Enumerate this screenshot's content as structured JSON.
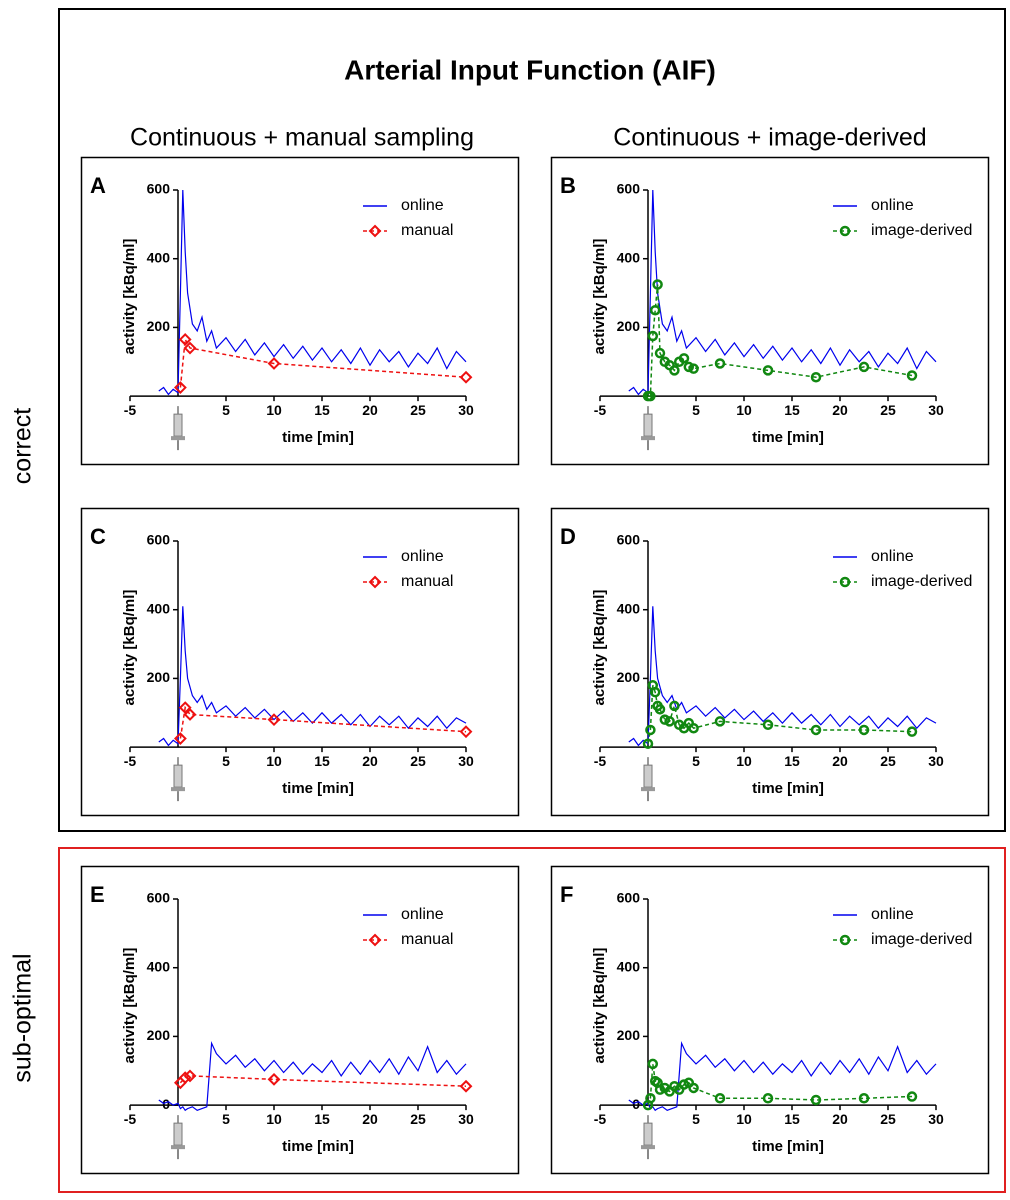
{
  "figure": {
    "title": "Arterial Input Function (AIF)",
    "columns": [
      "Continuous + manual sampling",
      "Continuous + image-derived"
    ],
    "rows": [
      "correct",
      "sub-optimal"
    ]
  },
  "chart_data": [
    {
      "type": "line",
      "label": "A",
      "xlabel": "time [min]",
      "ylabel": "activity [kBq/ml]",
      "xlim": [
        -5,
        30
      ],
      "ylim": [
        -20,
        600
      ],
      "xticks": [
        -5,
        5,
        10,
        15,
        20,
        25,
        30
      ],
      "yticks": [
        200,
        400,
        600
      ],
      "series": [
        {
          "name": "online",
          "color": "#0000ee",
          "marker": null,
          "dashed": false,
          "x": [
            -2,
            -1.5,
            -1,
            -0.5,
            0,
            0.25,
            0.5,
            0.75,
            1,
            1.5,
            2,
            2.5,
            3,
            3.5,
            4,
            5,
            6,
            7,
            8,
            9,
            10,
            11,
            12,
            13,
            14,
            15,
            16,
            17,
            18,
            19,
            20,
            21,
            22,
            23,
            24,
            25,
            26,
            27,
            28,
            29,
            30
          ],
          "values": [
            15,
            25,
            5,
            20,
            10,
            300,
            600,
            420,
            300,
            210,
            190,
            230,
            160,
            190,
            140,
            170,
            130,
            165,
            120,
            155,
            115,
            150,
            110,
            145,
            105,
            140,
            100,
            135,
            95,
            140,
            90,
            135,
            100,
            130,
            85,
            125,
            95,
            140,
            80,
            130,
            100
          ]
        },
        {
          "name": "manual",
          "color": "#ee1111",
          "marker": "diamond",
          "dashed": true,
          "x": [
            0.25,
            0.75,
            1.25,
            10,
            30
          ],
          "values": [
            25,
            165,
            140,
            95,
            55
          ]
        }
      ]
    },
    {
      "type": "line",
      "label": "B",
      "xlabel": "time [min]",
      "ylabel": "activity [kBq/ml]",
      "xlim": [
        -5,
        30
      ],
      "ylim": [
        -20,
        600
      ],
      "xticks": [
        -5,
        5,
        10,
        15,
        20,
        25,
        30
      ],
      "yticks": [
        200,
        400,
        600
      ],
      "series": [
        {
          "name": "online",
          "color": "#0000ee",
          "marker": null,
          "dashed": false,
          "x": [
            -2,
            -1.5,
            -1,
            -0.5,
            0,
            0.25,
            0.5,
            0.75,
            1,
            1.5,
            2,
            2.5,
            3,
            3.5,
            4,
            5,
            6,
            7,
            8,
            9,
            10,
            11,
            12,
            13,
            14,
            15,
            16,
            17,
            18,
            19,
            20,
            21,
            22,
            23,
            24,
            25,
            26,
            27,
            28,
            29,
            30
          ],
          "values": [
            15,
            25,
            5,
            20,
            10,
            300,
            600,
            420,
            300,
            210,
            190,
            230,
            160,
            190,
            140,
            170,
            130,
            165,
            120,
            155,
            115,
            150,
            110,
            145,
            105,
            140,
            100,
            135,
            95,
            140,
            90,
            135,
            100,
            130,
            85,
            125,
            95,
            140,
            80,
            130,
            100
          ]
        },
        {
          "name": "image-derived",
          "color": "#118811",
          "marker": "circle",
          "dashed": true,
          "x": [
            0,
            0.25,
            0.5,
            0.75,
            1,
            1.25,
            1.75,
            2.25,
            2.75,
            3.25,
            3.75,
            4.25,
            4.75,
            7.5,
            12.5,
            17.5,
            22.5,
            27.5
          ],
          "values": [
            0,
            0,
            175,
            250,
            325,
            125,
            100,
            90,
            75,
            100,
            110,
            85,
            80,
            95,
            75,
            55,
            85,
            60
          ]
        }
      ]
    },
    {
      "type": "line",
      "label": "C",
      "xlabel": "time [min]",
      "ylabel": "activity [kBq/ml]",
      "xlim": [
        -5,
        30
      ],
      "ylim": [
        -20,
        600
      ],
      "xticks": [
        -5,
        5,
        10,
        15,
        20,
        25,
        30
      ],
      "yticks": [
        200,
        400,
        600
      ],
      "series": [
        {
          "name": "online",
          "color": "#0000ee",
          "marker": null,
          "dashed": false,
          "x": [
            -2,
            -1.5,
            -1,
            -0.5,
            0,
            0.25,
            0.5,
            0.75,
            1,
            1.5,
            2,
            2.5,
            3,
            3.5,
            4,
            5,
            6,
            7,
            8,
            9,
            10,
            11,
            12,
            13,
            14,
            15,
            16,
            17,
            18,
            19,
            20,
            21,
            22,
            23,
            24,
            25,
            26,
            27,
            28,
            29,
            30
          ],
          "values": [
            15,
            25,
            5,
            20,
            10,
            200,
            410,
            280,
            200,
            150,
            130,
            150,
            110,
            130,
            100,
            120,
            90,
            115,
            85,
            110,
            80,
            105,
            75,
            100,
            70,
            100,
            70,
            95,
            65,
            95,
            60,
            90,
            65,
            90,
            55,
            85,
            60,
            90,
            55,
            85,
            70
          ]
        },
        {
          "name": "manual",
          "color": "#ee1111",
          "marker": "diamond",
          "dashed": true,
          "x": [
            0.25,
            0.75,
            1.25,
            10,
            30
          ],
          "values": [
            25,
            115,
            95,
            80,
            45
          ]
        }
      ]
    },
    {
      "type": "line",
      "label": "D",
      "xlabel": "time [min]",
      "ylabel": "activity [kBq/ml]",
      "xlim": [
        -5,
        30
      ],
      "ylim": [
        -20,
        600
      ],
      "xticks": [
        -5,
        5,
        10,
        15,
        20,
        25,
        30
      ],
      "yticks": [
        200,
        400,
        600
      ],
      "series": [
        {
          "name": "online",
          "color": "#0000ee",
          "marker": null,
          "dashed": false,
          "x": [
            -2,
            -1.5,
            -1,
            -0.5,
            0,
            0.25,
            0.5,
            0.75,
            1,
            1.5,
            2,
            2.5,
            3,
            3.5,
            4,
            5,
            6,
            7,
            8,
            9,
            10,
            11,
            12,
            13,
            14,
            15,
            16,
            17,
            18,
            19,
            20,
            21,
            22,
            23,
            24,
            25,
            26,
            27,
            28,
            29,
            30
          ],
          "values": [
            15,
            25,
            5,
            20,
            10,
            200,
            410,
            280,
            200,
            150,
            130,
            150,
            110,
            130,
            100,
            120,
            90,
            115,
            85,
            110,
            80,
            105,
            75,
            100,
            70,
            100,
            70,
            95,
            65,
            95,
            60,
            90,
            65,
            90,
            55,
            85,
            60,
            90,
            55,
            85,
            70
          ]
        },
        {
          "name": "image-derived",
          "color": "#118811",
          "marker": "circle",
          "dashed": true,
          "x": [
            0,
            0.25,
            0.5,
            0.75,
            1,
            1.25,
            1.75,
            2.25,
            2.75,
            3.25,
            3.75,
            4.25,
            4.75,
            7.5,
            12.5,
            17.5,
            22.5,
            27.5
          ],
          "values": [
            10,
            50,
            180,
            160,
            120,
            110,
            80,
            75,
            120,
            65,
            55,
            70,
            55,
            75,
            65,
            50,
            50,
            45
          ]
        }
      ]
    },
    {
      "type": "line",
      "label": "E",
      "xlabel": "time [min]",
      "ylabel": "activity [kBq/ml]",
      "xlim": [
        -5,
        30
      ],
      "ylim": [
        -20,
        600
      ],
      "xticks": [
        -5,
        5,
        10,
        15,
        20,
        25,
        30
      ],
      "yticks": [
        0,
        200,
        400,
        600
      ],
      "series": [
        {
          "name": "online",
          "color": "#0000ee",
          "marker": null,
          "dashed": false,
          "x": [
            -2,
            -1.5,
            -1,
            -0.5,
            0,
            0.25,
            0.5,
            0.75,
            1,
            1.5,
            2,
            2.5,
            3,
            3.5,
            4,
            5,
            6,
            7,
            8,
            9,
            10,
            11,
            12,
            13,
            14,
            15,
            16,
            17,
            18,
            19,
            20,
            21,
            22,
            23,
            24,
            25,
            26,
            27,
            28,
            29,
            30
          ],
          "values": [
            15,
            5,
            10,
            0,
            5,
            -10,
            -5,
            -15,
            -10,
            -5,
            -15,
            -10,
            -5,
            180,
            150,
            120,
            145,
            110,
            135,
            100,
            130,
            95,
            125,
            90,
            120,
            95,
            130,
            85,
            125,
            90,
            130,
            95,
            135,
            90,
            140,
            100,
            170,
            95,
            130,
            90,
            120
          ]
        },
        {
          "name": "manual",
          "color": "#ee1111",
          "marker": "diamond",
          "dashed": true,
          "x": [
            0.25,
            0.75,
            1.25,
            10,
            30
          ],
          "values": [
            65,
            80,
            85,
            75,
            55
          ]
        }
      ]
    },
    {
      "type": "line",
      "label": "F",
      "xlabel": "time [min]",
      "ylabel": "activity [kBq/ml]",
      "xlim": [
        -5,
        30
      ],
      "ylim": [
        -20,
        600
      ],
      "xticks": [
        -5,
        5,
        10,
        15,
        20,
        25,
        30
      ],
      "yticks": [
        0,
        200,
        400,
        600
      ],
      "series": [
        {
          "name": "online",
          "color": "#0000ee",
          "marker": null,
          "dashed": false,
          "x": [
            -2,
            -1.5,
            -1,
            -0.5,
            0,
            0.25,
            0.5,
            0.75,
            1,
            1.5,
            2,
            2.5,
            3,
            3.5,
            4,
            5,
            6,
            7,
            8,
            9,
            10,
            11,
            12,
            13,
            14,
            15,
            16,
            17,
            18,
            19,
            20,
            21,
            22,
            23,
            24,
            25,
            26,
            27,
            28,
            29,
            30
          ],
          "values": [
            15,
            5,
            10,
            0,
            5,
            -10,
            -5,
            -15,
            -10,
            -5,
            -15,
            -10,
            -5,
            180,
            150,
            120,
            145,
            110,
            135,
            100,
            130,
            95,
            125,
            90,
            120,
            95,
            130,
            85,
            125,
            90,
            130,
            95,
            135,
            90,
            140,
            100,
            170,
            95,
            130,
            90,
            120
          ]
        },
        {
          "name": "image-derived",
          "color": "#118811",
          "marker": "circle",
          "dashed": true,
          "x": [
            0,
            0.25,
            0.5,
            0.75,
            1,
            1.25,
            1.75,
            2.25,
            2.75,
            3.25,
            3.75,
            4.25,
            4.75,
            7.5,
            12.5,
            17.5,
            22.5,
            27.5
          ],
          "values": [
            0,
            20,
            120,
            70,
            65,
            45,
            50,
            40,
            55,
            45,
            60,
            65,
            50,
            20,
            20,
            15,
            20,
            25
          ]
        }
      ]
    }
  ]
}
